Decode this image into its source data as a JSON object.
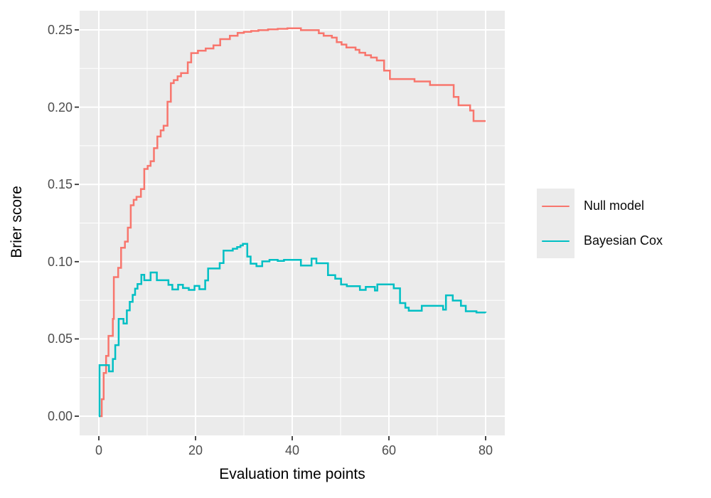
{
  "chart_data": {
    "type": "line",
    "variant": "step",
    "title": "",
    "xlabel": "Evaluation time points",
    "ylabel": "Brier score",
    "xlim": [
      0,
      80
    ],
    "ylim": [
      0,
      0.25
    ],
    "x_ticks": [
      0,
      20,
      40,
      60,
      80
    ],
    "y_tick_labels": [
      "0.00",
      "0.05",
      "0.10",
      "0.15",
      "0.20",
      "0.25"
    ],
    "y_tick_values": [
      0,
      0.05,
      0.1,
      0.15,
      0.2,
      0.25
    ],
    "grid": "white major and minor gridlines on gray panel",
    "panel_background": "#EBEBEB",
    "legend_position": "right",
    "series": [
      {
        "name": "Null model",
        "color": "#F8766D",
        "points": [
          [
            0,
            0
          ],
          [
            0.6,
            0.011
          ],
          [
            1,
            0.028
          ],
          [
            1.5,
            0.039
          ],
          [
            2,
            0.052
          ],
          [
            2.9,
            0.063
          ],
          [
            3.1,
            0.09
          ],
          [
            4,
            0.096
          ],
          [
            4.6,
            0.109
          ],
          [
            5.4,
            0.113
          ],
          [
            6,
            0.122
          ],
          [
            6.6,
            0.1365
          ],
          [
            7.2,
            0.14
          ],
          [
            7.8,
            0.142
          ],
          [
            8.7,
            0.147
          ],
          [
            9.4,
            0.16
          ],
          [
            10.1,
            0.162
          ],
          [
            10.7,
            0.165
          ],
          [
            11.4,
            0.1735
          ],
          [
            12.1,
            0.181
          ],
          [
            12.8,
            0.185
          ],
          [
            13.4,
            0.188
          ],
          [
            14.2,
            0.2035
          ],
          [
            14.9,
            0.2155
          ],
          [
            15.5,
            0.2175
          ],
          [
            16.3,
            0.22
          ],
          [
            17,
            0.222
          ],
          [
            18.4,
            0.229
          ],
          [
            19.1,
            0.235
          ],
          [
            20.5,
            0.2365
          ],
          [
            22.1,
            0.238
          ],
          [
            23.7,
            0.24
          ],
          [
            25.1,
            0.244
          ],
          [
            27.1,
            0.2462
          ],
          [
            28.7,
            0.248
          ],
          [
            30,
            0.2487
          ],
          [
            31.5,
            0.2493
          ],
          [
            33,
            0.2498
          ],
          [
            35,
            0.2503
          ],
          [
            37,
            0.2507
          ],
          [
            39,
            0.251
          ],
          [
            41.8,
            0.2498
          ],
          [
            45.5,
            0.2478
          ],
          [
            46.5,
            0.2462
          ],
          [
            48.2,
            0.245
          ],
          [
            49.2,
            0.2421
          ],
          [
            50.2,
            0.2405
          ],
          [
            51.2,
            0.2386
          ],
          [
            53.1,
            0.2371
          ],
          [
            53.9,
            0.2352
          ],
          [
            55.1,
            0.2336
          ],
          [
            56.3,
            0.2321
          ],
          [
            57.5,
            0.2302
          ],
          [
            59,
            0.2236
          ],
          [
            60.2,
            0.2182
          ],
          [
            65.3,
            0.2166
          ],
          [
            68.5,
            0.2143
          ],
          [
            73.4,
            0.2066
          ],
          [
            74.4,
            0.2012
          ],
          [
            76.8,
            0.1978
          ],
          [
            77.5,
            0.191
          ],
          [
            80,
            0.191
          ]
        ]
      },
      {
        "name": "Bayesian Cox",
        "color": "#00BFC4",
        "points": [
          [
            0,
            0
          ],
          [
            0.15,
            0.033
          ],
          [
            2.1,
            0.029
          ],
          [
            2.9,
            0.037
          ],
          [
            3.4,
            0.046
          ],
          [
            4.1,
            0.063
          ],
          [
            5.1,
            0.06
          ],
          [
            5.8,
            0.0685
          ],
          [
            6.4,
            0.074
          ],
          [
            7,
            0.0785
          ],
          [
            7.5,
            0.0825
          ],
          [
            8,
            0.0855
          ],
          [
            8.8,
            0.0915
          ],
          [
            9.4,
            0.088
          ],
          [
            10.7,
            0.093
          ],
          [
            12,
            0.088
          ],
          [
            14.4,
            0.085
          ],
          [
            15.2,
            0.082
          ],
          [
            16.4,
            0.0851
          ],
          [
            17.4,
            0.0829
          ],
          [
            18.6,
            0.0817
          ],
          [
            19.8,
            0.0843
          ],
          [
            20.8,
            0.0822
          ],
          [
            22,
            0.0879
          ],
          [
            22.6,
            0.0956
          ],
          [
            25,
            0.0991
          ],
          [
            25.8,
            0.1072
          ],
          [
            27.7,
            0.1084
          ],
          [
            28.6,
            0.1095
          ],
          [
            29.3,
            0.1105
          ],
          [
            29.8,
            0.1115
          ],
          [
            30.7,
            0.1033
          ],
          [
            31.4,
            0.0987
          ],
          [
            32.6,
            0.0971
          ],
          [
            33.8,
            0.1002
          ],
          [
            35.3,
            0.1012
          ],
          [
            37,
            0.1005
          ],
          [
            38.3,
            0.1012
          ],
          [
            41.8,
            0.0975
          ],
          [
            44,
            0.102
          ],
          [
            45,
            0.099
          ],
          [
            47.4,
            0.0913
          ],
          [
            48.9,
            0.089
          ],
          [
            50.1,
            0.0852
          ],
          [
            51.3,
            0.0841
          ],
          [
            54,
            0.0817
          ],
          [
            55.2,
            0.0837
          ],
          [
            57.1,
            0.0813
          ],
          [
            57.6,
            0.0853
          ],
          [
            61,
            0.0828
          ],
          [
            62.3,
            0.0732
          ],
          [
            63.4,
            0.0702
          ],
          [
            64.1,
            0.0683
          ],
          [
            66.8,
            0.0714
          ],
          [
            71.2,
            0.0689
          ],
          [
            71.8,
            0.0782
          ],
          [
            73.2,
            0.0748
          ],
          [
            74.9,
            0.0714
          ],
          [
            75.9,
            0.0679
          ],
          [
            78.1,
            0.0671
          ],
          [
            80,
            0.067
          ]
        ]
      }
    ]
  },
  "legend": {
    "items": [
      {
        "label": "Null model"
      },
      {
        "label": "Bayesian Cox"
      }
    ]
  }
}
